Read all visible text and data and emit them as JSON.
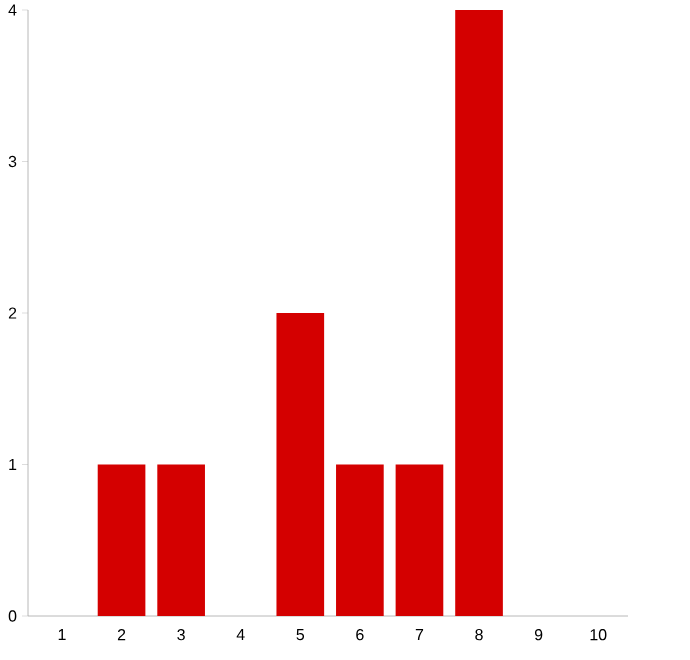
{
  "chart_data": {
    "type": "bar",
    "categories": [
      "1",
      "2",
      "3",
      "4",
      "5",
      "6",
      "7",
      "8",
      "9",
      "10"
    ],
    "values": [
      0,
      1,
      1,
      0,
      2,
      1,
      1,
      4,
      0,
      0
    ],
    "color": "#d40000",
    "ylim": [
      0,
      4
    ],
    "yticks": [
      0,
      1,
      2,
      3,
      4
    ]
  }
}
